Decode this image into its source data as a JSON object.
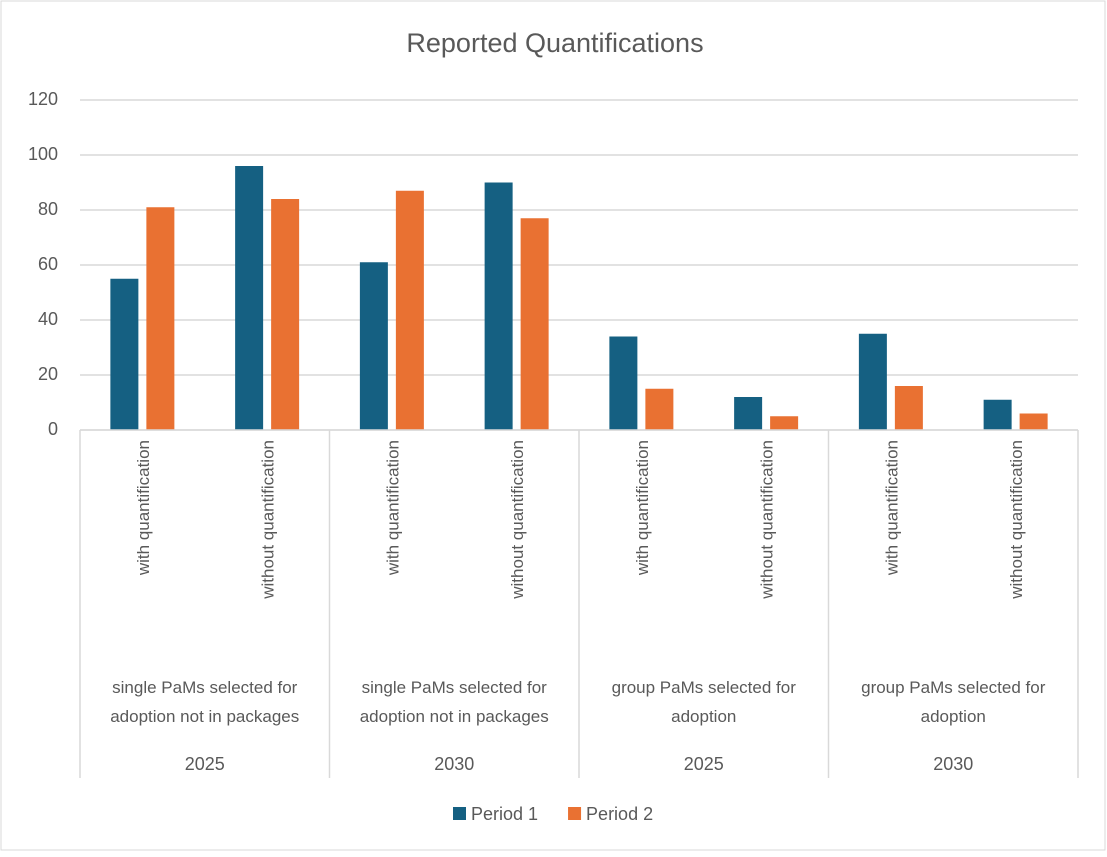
{
  "chart_data": {
    "type": "bar",
    "title": "Reported Quantifications",
    "categories": [
      "with quantification",
      "without quantification",
      "with quantification",
      "without quantification",
      "with quantification",
      "without quantification",
      "with quantification",
      "without quantification"
    ],
    "groups": [
      {
        "label": "single PaMs selected for adoption not in packages",
        "year": "2025"
      },
      {
        "label": "single PaMs selected for adoption not in packages",
        "year": "2030"
      },
      {
        "label": "group PaMs selected for adoption",
        "year": "2025"
      },
      {
        "label": "group PaMs selected for adoption",
        "year": "2030"
      }
    ],
    "series": [
      {
        "name": "Period 1",
        "color": "#156082",
        "values": [
          55,
          96,
          61,
          90,
          34,
          12,
          35,
          11
        ]
      },
      {
        "name": "Period 2",
        "color": "#e97132",
        "values": [
          81,
          84,
          87,
          77,
          15,
          5,
          16,
          6
        ]
      }
    ],
    "ylim": [
      0,
      120
    ],
    "yticks": [
      0,
      20,
      40,
      60,
      80,
      100,
      120
    ],
    "grid": true,
    "legend": "bottom"
  }
}
